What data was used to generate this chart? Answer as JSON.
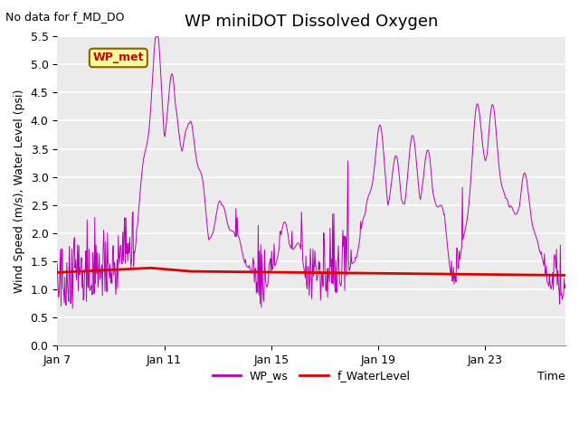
{
  "title": "WP miniDOT Dissolved Oxygen",
  "top_left_note": "No data for f_MD_DO",
  "ylabel": "Wind Speed (m/s), Water Level (psi)",
  "xlabel": "Time",
  "legend_box_label": "WP_met",
  "legend_box_color": "#ffff99",
  "legend_box_edge": "#8B6000",
  "legend_box_text_color": "#cc0000",
  "ylim": [
    0.0,
    5.5
  ],
  "yticks": [
    0.0,
    0.5,
    1.0,
    1.5,
    2.0,
    2.5,
    3.0,
    3.5,
    4.0,
    4.5,
    5.0,
    5.5
  ],
  "x_tick_labels": [
    "Jan 7",
    "Jan 11",
    "Jan 15",
    "Jan 19",
    "Jan 23"
  ],
  "x_tick_positions": [
    6,
    10,
    14,
    18,
    22
  ],
  "xlim": [
    6,
    25
  ],
  "wp_ws_color": "#bb00bb",
  "f_waterlevel_color": "#dd0000",
  "background_color": "#ebebeb",
  "grid_color": "#ffffff",
  "legend_ws_label": "WP_ws",
  "legend_wl_label": "f_WaterLevel",
  "title_fontsize": 13,
  "label_fontsize": 9,
  "note_fontsize": 9
}
